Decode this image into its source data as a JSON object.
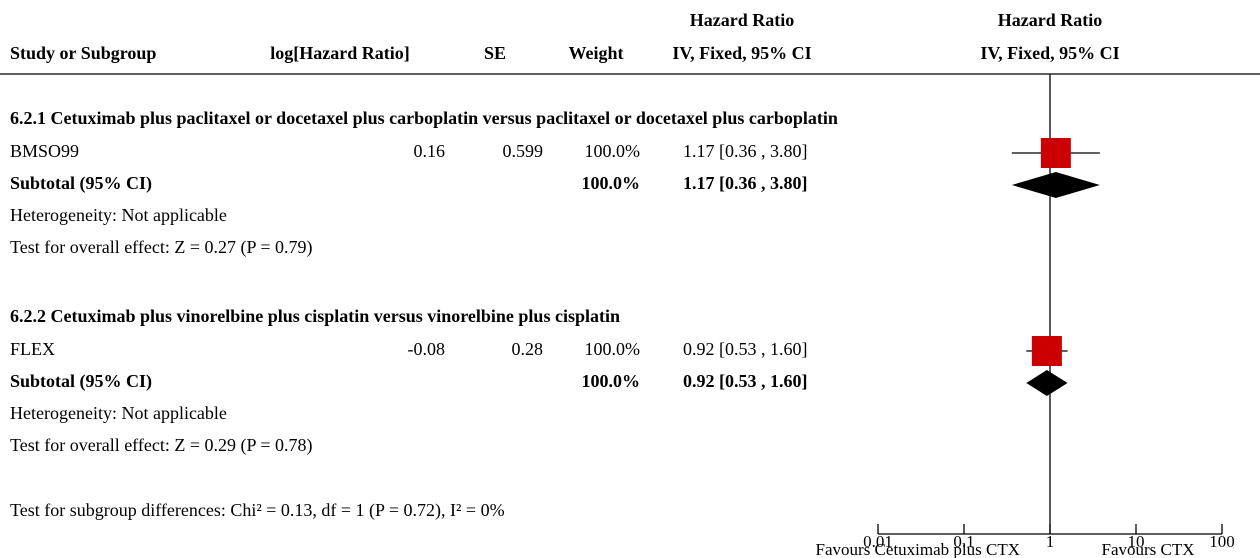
{
  "chart_data": {
    "type": "forest",
    "headers": {
      "study": "Study or Subgroup",
      "loghr": "log[Hazard Ratio]",
      "se": "SE",
      "weight": "Weight",
      "hr_table": [
        "Hazard Ratio",
        "IV, Fixed, 95% CI"
      ],
      "hr_plot": [
        "Hazard Ratio",
        "IV, Fixed, 95% CI"
      ]
    },
    "subgroups": [
      {
        "title": "6.2.1 Cetuximab plus paclitaxel or docetaxel plus carboplatin versus paclitaxel or docetaxel plus carboplatin",
        "studies": [
          {
            "name": "BMSO99",
            "loghr": 0.16,
            "se": 0.599,
            "weight": 100,
            "weight_label": "100.0%",
            "hr": 1.17,
            "ci": [
              0.36,
              3.8
            ],
            "hr_label": "1.17 [0.36 , 3.80]"
          }
        ],
        "subtotal": {
          "label": "Subtotal (95% CI)",
          "weight_label": "100.0%",
          "hr": 1.17,
          "ci": [
            0.36,
            3.8
          ],
          "hr_label": "1.17 [0.36 , 3.80]"
        },
        "heterogeneity": "Heterogeneity: Not applicable",
        "overall_effect": "Test for overall effect: Z = 0.27 (P = 0.79)"
      },
      {
        "title": "6.2.2 Cetuximab plus vinorelbine plus cisplatin versus vinorelbine plus cisplatin",
        "studies": [
          {
            "name": "FLEX",
            "loghr": -0.08,
            "se": 0.28,
            "weight": 100,
            "weight_label": "100.0%",
            "hr": 0.92,
            "ci": [
              0.53,
              1.6
            ],
            "hr_label": "0.92 [0.53 , 1.60]"
          }
        ],
        "subtotal": {
          "label": "Subtotal (95% CI)",
          "weight_label": "100.0%",
          "hr": 0.92,
          "ci": [
            0.53,
            1.6
          ],
          "hr_label": "0.92 [0.53 , 1.60]"
        },
        "heterogeneity": "Heterogeneity: Not applicable",
        "overall_effect": "Test for overall effect: Z = 0.29 (P = 0.78)"
      }
    ],
    "footer": "Test for subgroup differences: Chi² = 0.13, df = 1 (P = 0.72), I² = 0%",
    "xlim": [
      0.01,
      100
    ],
    "xticks": [
      0.01,
      0.1,
      1,
      10,
      100
    ],
    "log_scale": true,
    "favours": [
      "Favours Cetuximab plus CTX",
      "Favours CTX"
    ],
    "square_color": "#cc0000",
    "diamond_color": "#000000"
  }
}
